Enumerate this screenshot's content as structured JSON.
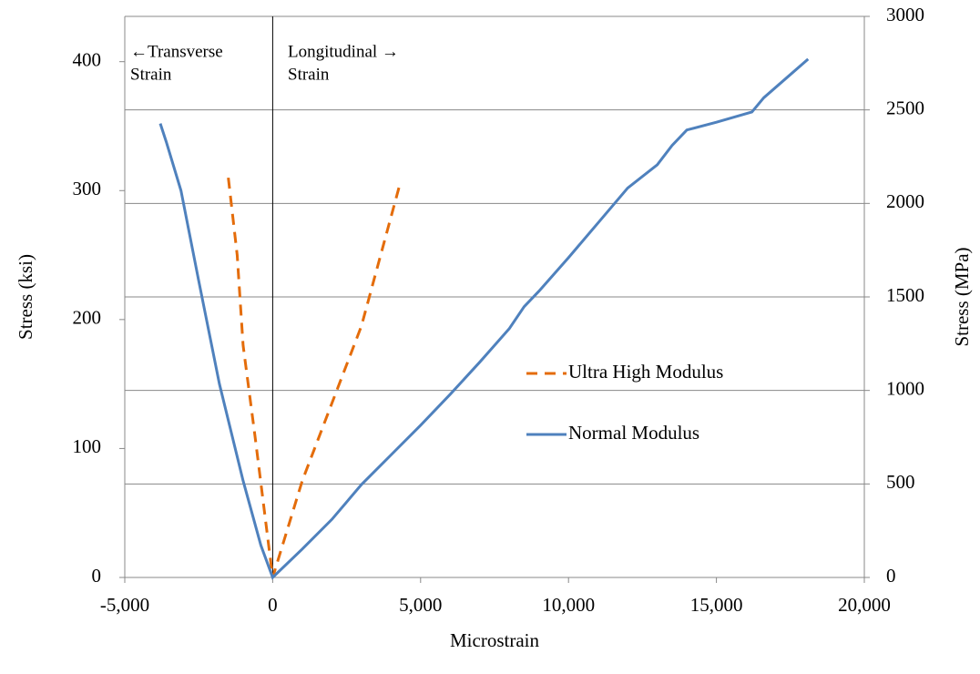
{
  "chart_data": {
    "type": "line",
    "x_label": "Microstrain",
    "y_label": "Stress (ksi)",
    "y2_label": "Stress (MPa)",
    "xlim": [
      -5000,
      20000
    ],
    "xticks": [
      {
        "value": -5000,
        "label": "-5,000"
      },
      0,
      {
        "value": 5000,
        "label": "5,000"
      },
      {
        "value": 10000,
        "label": "10,000"
      },
      {
        "value": 15000,
        "label": "15,000"
      },
      {
        "value": 20000,
        "label": "20,000"
      }
    ],
    "ylim": [
      0,
      435.1
    ],
    "yticks": [
      0,
      100,
      200,
      300,
      400
    ],
    "y2lim": [
      0,
      3000
    ],
    "y2ticks": [
      0,
      500,
      1000,
      1500,
      2000,
      2500,
      3000
    ],
    "grid": "y2",
    "annotations": [
      {
        "lines": [
          "←Transverse",
          "Strain"
        ]
      },
      {
        "lines": [
          "Longitudinal →",
          "Strain"
        ]
      }
    ],
    "series": [
      {
        "name": "Ultra High Modulus",
        "color": "#e46c0a",
        "dash": true,
        "x": [
          -1500,
          -1200,
          -1000,
          -600,
          0,
          1000,
          2000,
          3000,
          4300
        ],
        "values": [
          310,
          250,
          180,
          110,
          0,
          75,
          135,
          195,
          305
        ]
      },
      {
        "name": "Normal Modulus",
        "color": "#4f81bd",
        "dash": false,
        "x": [
          -3800,
          -3600,
          -3100,
          -2500,
          -1800,
          -1000,
          -400,
          0,
          1000,
          2000,
          3000,
          4000,
          5000,
          6000,
          7000,
          8000,
          8500,
          9000,
          10000,
          11000,
          12000,
          13000,
          13500,
          14000,
          15000,
          16200,
          16600,
          17400,
          18100
        ],
        "values": [
          352,
          338,
          300,
          230,
          150,
          75,
          25,
          0,
          22,
          45,
          72,
          95,
          118,
          142,
          167,
          193,
          210,
          222,
          248,
          275,
          302,
          320,
          335,
          347,
          353,
          361,
          372,
          388,
          402
        ]
      }
    ]
  }
}
